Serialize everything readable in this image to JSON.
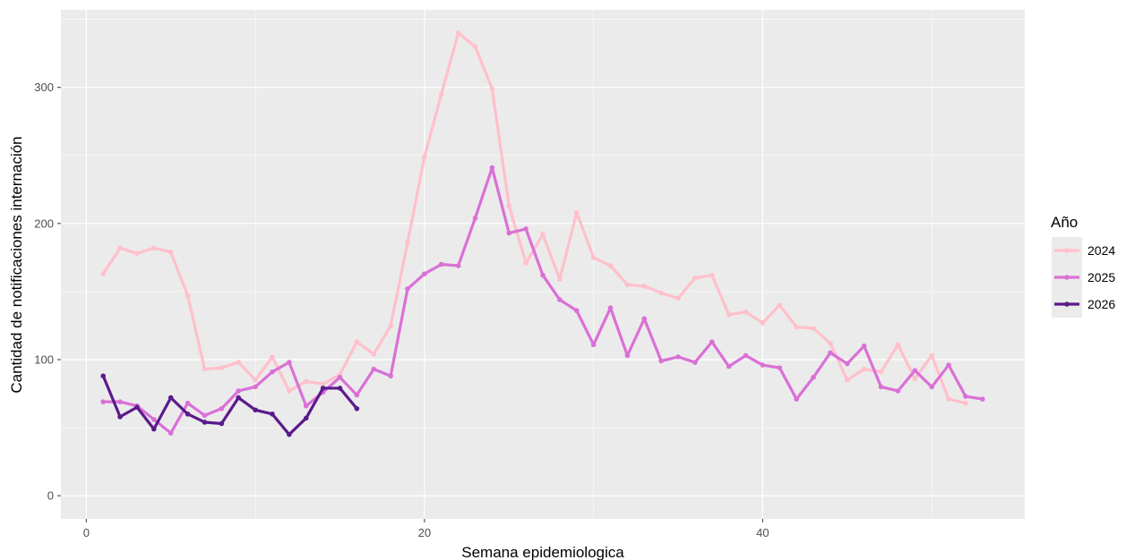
{
  "chart_data": {
    "type": "line",
    "xlabel": "Semana epidemiologica",
    "ylabel": "Cantidad de notificaciones internación",
    "xlim": [
      -1.5,
      55.5
    ],
    "ylim": [
      -17,
      357
    ],
    "x_ticks": [
      0,
      20,
      40
    ],
    "x_tick_labels": [
      "0",
      "20",
      "40"
    ],
    "y_ticks": [
      0,
      100,
      200,
      300
    ],
    "y_tick_labels": [
      "0",
      "100",
      "200",
      "300"
    ],
    "grid": true,
    "legend": {
      "title": "Año",
      "position": "right"
    },
    "series": [
      {
        "name": "2024",
        "color": "#FFC0CB",
        "x": [
          1,
          2,
          3,
          4,
          5,
          6,
          7,
          8,
          9,
          10,
          11,
          12,
          13,
          14,
          15,
          16,
          17,
          18,
          19,
          20,
          21,
          22,
          23,
          24,
          25,
          26,
          27,
          28,
          29,
          30,
          31,
          32,
          33,
          34,
          35,
          36,
          37,
          38,
          39,
          40,
          41,
          42,
          43,
          44,
          45,
          46,
          47,
          48,
          49,
          50,
          51,
          52
        ],
        "values": [
          163,
          182,
          178,
          182,
          179,
          147,
          93,
          94,
          98,
          85,
          102,
          77,
          84,
          82,
          89,
          113,
          104,
          125,
          186,
          249,
          295,
          340,
          330,
          299,
          213,
          171,
          192,
          159,
          208,
          175,
          169,
          155,
          154,
          149,
          145,
          160,
          162,
          133,
          135,
          127,
          140,
          124,
          123,
          112,
          85,
          93,
          91,
          111,
          86,
          103,
          71,
          68
        ]
      },
      {
        "name": "2025",
        "color": "#DA70D6",
        "x": [
          1,
          2,
          3,
          4,
          5,
          6,
          7,
          8,
          9,
          10,
          11,
          12,
          13,
          14,
          15,
          16,
          17,
          18,
          19,
          20,
          21,
          22,
          23,
          24,
          25,
          26,
          27,
          28,
          29,
          30,
          31,
          32,
          33,
          34,
          35,
          36,
          37,
          38,
          39,
          40,
          41,
          42,
          43,
          44,
          45,
          46,
          47,
          48,
          49,
          50,
          51,
          52,
          53
        ],
        "values": [
          69,
          69,
          66,
          56,
          46,
          68,
          59,
          64,
          77,
          80,
          91,
          98,
          66,
          76,
          87,
          74,
          93,
          88,
          152,
          163,
          170,
          169,
          204,
          241,
          193,
          196,
          162,
          144,
          136,
          111,
          138,
          103,
          130,
          99,
          102,
          98,
          113,
          95,
          103,
          96,
          94,
          71,
          87,
          105,
          97,
          110,
          80,
          77,
          92,
          80,
          96,
          73,
          71
        ]
      },
      {
        "name": "2026",
        "color": "#5B1A8B",
        "x": [
          1,
          2,
          3,
          4,
          5,
          6,
          7,
          8,
          9,
          10,
          11,
          12,
          13,
          14,
          15,
          16
        ],
        "values": [
          88,
          58,
          65,
          49,
          72,
          60,
          54,
          53,
          72,
          63,
          60,
          45,
          57,
          79,
          79,
          64
        ]
      }
    ]
  }
}
